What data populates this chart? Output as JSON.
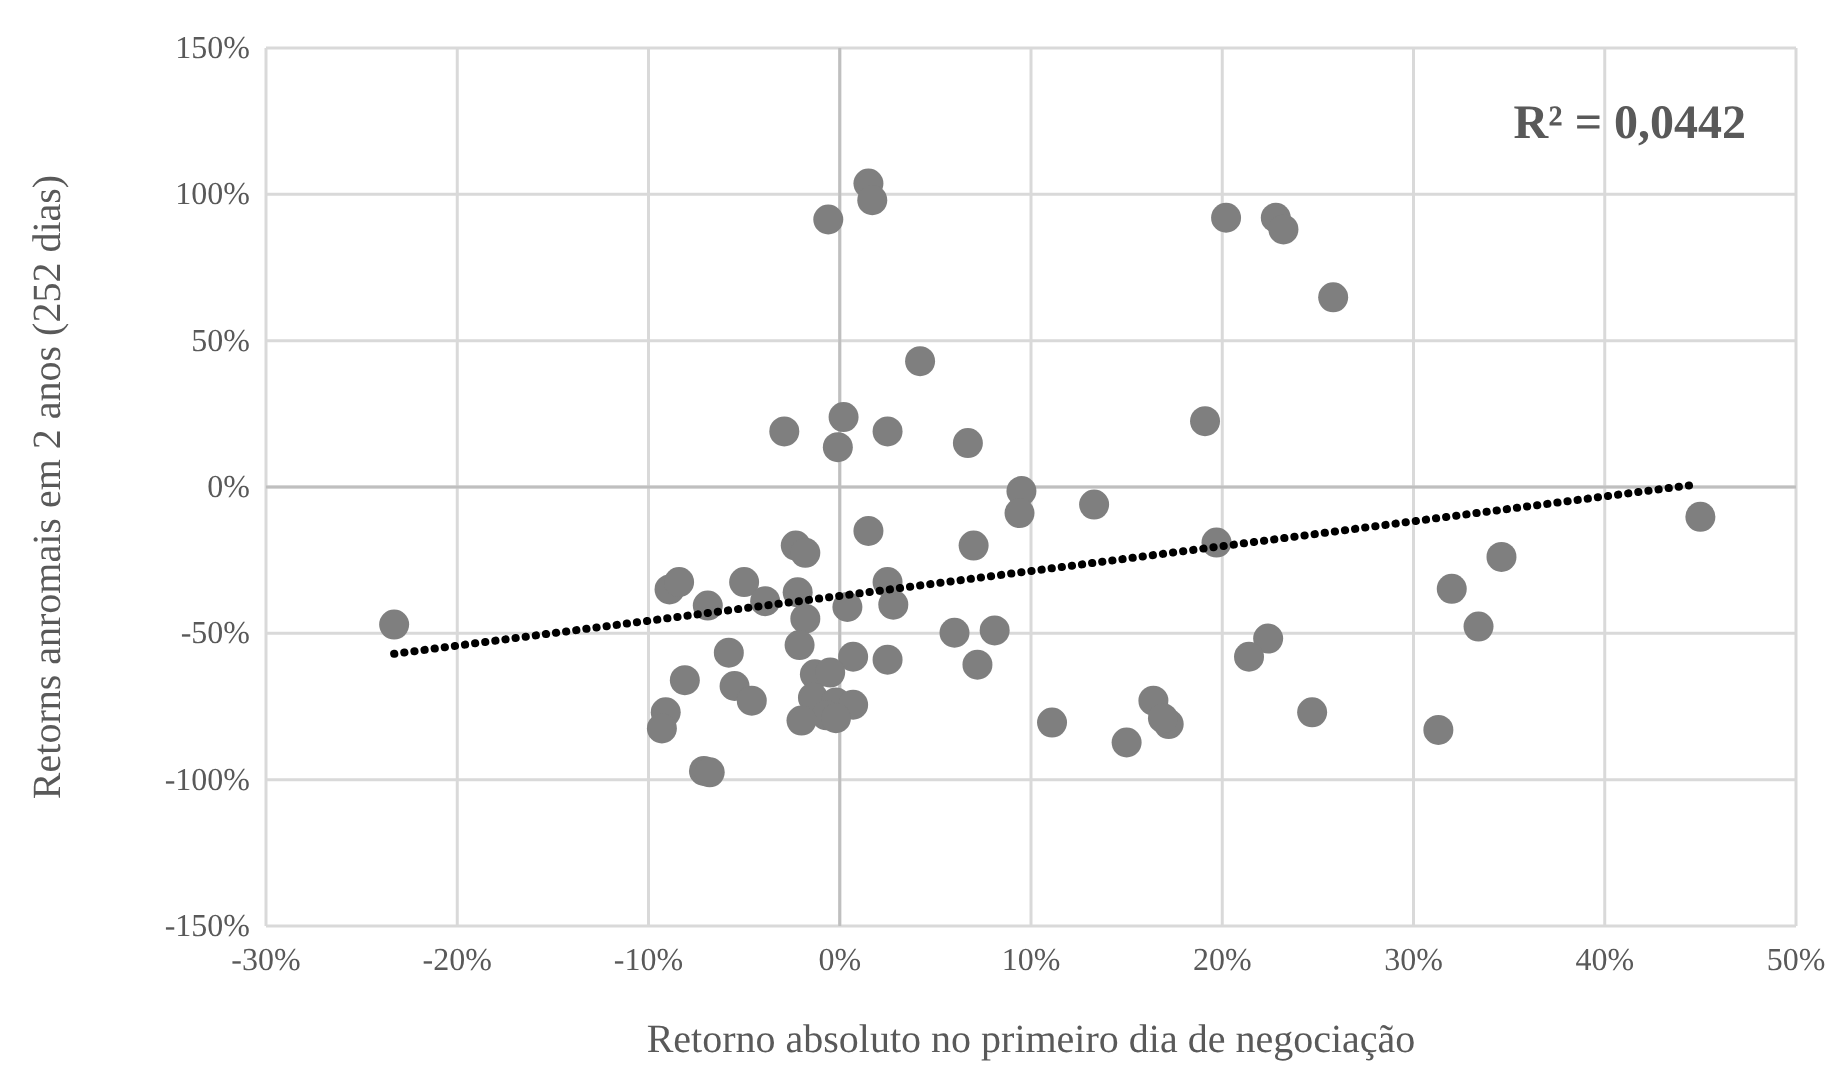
{
  "chart_data": {
    "type": "scatter",
    "xlabel": "Retorno absoluto no primeiro dia de negociação",
    "ylabel": "Retorns anromais em 2 anos (252 dias)",
    "annotations": [
      "R² = 0,0442"
    ],
    "xlim": [
      -30,
      50
    ],
    "ylim": [
      -150,
      150
    ],
    "xticks": [
      {
        "value": -30,
        "label": "-30%"
      },
      {
        "value": -20,
        "label": "-20%"
      },
      {
        "value": -10,
        "label": "-10%"
      },
      {
        "value": 0,
        "label": "0%"
      },
      {
        "value": 10,
        "label": "10%"
      },
      {
        "value": 20,
        "label": "20%"
      },
      {
        "value": 30,
        "label": "30%"
      },
      {
        "value": 40,
        "label": "40%"
      },
      {
        "value": 50,
        "label": "50%"
      }
    ],
    "yticks": [
      {
        "value": -150,
        "label": "-150%"
      },
      {
        "value": -100,
        "label": "-100%"
      },
      {
        "value": -50,
        "label": "-50%"
      },
      {
        "value": 0,
        "label": "0%"
      },
      {
        "value": 50,
        "label": "50%"
      },
      {
        "value": 100,
        "label": "100%"
      },
      {
        "value": 150,
        "label": "150%"
      }
    ],
    "grid": true,
    "series": [
      {
        "color": "#7f7f7f",
        "marker": "circle",
        "x": [
          1.5,
          1.7,
          -0.6,
          4.2,
          0.2,
          -2.9,
          2.5,
          -0.1,
          6.7,
          9.5,
          9.4,
          13.3,
          1.5,
          -2.3,
          -1.8,
          -8.9,
          -8.4,
          -5,
          -6.9,
          -3.9,
          -2.2,
          -1.8,
          0.4,
          2.5,
          2.8,
          6,
          8.1,
          7,
          -5.8,
          -2.1,
          0.7,
          2.5,
          7.2,
          -8.1,
          -5.5,
          -4.6,
          -1.3,
          -0.5,
          -1.4,
          -0.2,
          0.7,
          -0.7,
          -0.2,
          -2,
          -9.1,
          -9.3,
          -7.1,
          -6.8,
          11.1,
          25.8,
          19.1,
          19.7,
          45,
          34.6,
          32,
          33.4,
          22.4,
          21.4,
          16.4,
          17.2,
          16.9,
          15,
          24.7,
          31.3,
          20.2,
          22.8,
          23.2,
          -23.3
        ],
        "values": [
          103.7,
          98,
          91.4,
          43,
          23.9,
          19,
          19,
          13.6,
          15,
          -1.4,
          -8.9,
          -6,
          -15,
          -20,
          -22.5,
          -35,
          -32.5,
          -32.5,
          -40.5,
          -39,
          -36,
          -45,
          -41,
          -32.5,
          -40.2,
          -49.8,
          -49,
          -20,
          -56.6,
          -54,
          -58,
          -59,
          -60.7,
          -66,
          -68,
          -73,
          -64,
          -63.4,
          -72,
          -73.6,
          -74.4,
          -78,
          -79,
          -79.8,
          -77,
          -82.5,
          -97,
          -97.5,
          -80.5,
          64.8,
          22.5,
          -19,
          -10.2,
          -23.9,
          -34.8,
          -47.7,
          -51.8,
          -58,
          -73,
          -81,
          -79,
          -87.3,
          -77,
          -83,
          92,
          92,
          88,
          -47
        ]
      },
      {
        "type": "line",
        "color": "#000000",
        "line_style": "dotted",
        "x": [
          -23.3,
          44.6
        ],
        "values": [
          -57,
          0.7
        ]
      }
    ]
  }
}
